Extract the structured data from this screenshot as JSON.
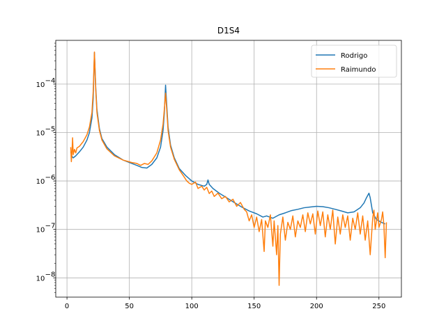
{
  "chart_data": {
    "type": "line",
    "title": "D1S4",
    "xlabel": "",
    "ylabel": "",
    "xlim": [
      -9,
      268
    ],
    "ylim": [
      4e-09,
      0.0008
    ],
    "y_scale": "log",
    "grid": true,
    "legend_position": "top-right",
    "x_ticks": [
      0,
      50,
      100,
      150,
      200,
      250
    ],
    "x_tick_labels": [
      "0",
      "50",
      "100",
      "150",
      "200",
      "250"
    ],
    "y_ticks": [
      1e-08,
      1e-07,
      1e-06,
      1e-05,
      0.0001
    ],
    "y_tick_labels": [
      "10",
      "10",
      "10",
      "10",
      "10"
    ],
    "y_tick_exponents": [
      "−8",
      "−7",
      "−6",
      "−5",
      "−4"
    ],
    "series": [
      {
        "name": "Rodrigo",
        "color": "#1f77b4",
        "points": [
          [
            3,
            4e-06
          ],
          [
            4,
            3.2e-06
          ],
          [
            5,
            3e-06
          ],
          [
            7,
            3.3e-06
          ],
          [
            10,
            4e-06
          ],
          [
            13,
            5e-06
          ],
          [
            16,
            7e-06
          ],
          [
            18,
            1e-05
          ],
          [
            20,
            2e-05
          ],
          [
            21,
            5e-05
          ],
          [
            22,
            0.00045
          ],
          [
            23,
            9e-05
          ],
          [
            24,
            3e-05
          ],
          [
            26,
            1.2e-05
          ],
          [
            28,
            7.5e-06
          ],
          [
            32,
            5e-06
          ],
          [
            38,
            3.5e-06
          ],
          [
            45,
            2.7e-06
          ],
          [
            52,
            2.3e-06
          ],
          [
            56,
            2.1e-06
          ],
          [
            60,
            1.9e-06
          ],
          [
            64,
            1.85e-06
          ],
          [
            68,
            2.2e-06
          ],
          [
            72,
            3e-06
          ],
          [
            75,
            5e-06
          ],
          [
            77,
            1.1e-05
          ],
          [
            78,
            2.5e-05
          ],
          [
            79,
            9.5e-05
          ],
          [
            80,
            3.5e-05
          ],
          [
            81,
            1.3e-05
          ],
          [
            83,
            5.5e-06
          ],
          [
            86,
            3e-06
          ],
          [
            90,
            1.8e-06
          ],
          [
            95,
            1.3e-06
          ],
          [
            100,
            1e-06
          ],
          [
            105,
            8.5e-07
          ],
          [
            110,
            7.8e-07
          ],
          [
            112,
            8.5e-07
          ],
          [
            113,
            1.05e-06
          ],
          [
            114,
            8.5e-07
          ],
          [
            117,
            7e-07
          ],
          [
            122,
            5.6e-07
          ],
          [
            128,
            4.5e-07
          ],
          [
            134,
            3.6e-07
          ],
          [
            140,
            2.9e-07
          ],
          [
            146,
            2.4e-07
          ],
          [
            152,
            2.1e-07
          ],
          [
            157,
            1.8e-07
          ],
          [
            160,
            1.9e-07
          ],
          [
            165,
            1.7e-07
          ],
          [
            170,
            2e-07
          ],
          [
            175,
            2.2e-07
          ],
          [
            180,
            2.45e-07
          ],
          [
            185,
            2.6e-07
          ],
          [
            190,
            2.8e-07
          ],
          [
            195,
            2.9e-07
          ],
          [
            200,
            3e-07
          ],
          [
            205,
            2.95e-07
          ],
          [
            210,
            2.8e-07
          ],
          [
            215,
            2.6e-07
          ],
          [
            220,
            2.4e-07
          ],
          [
            225,
            2.2e-07
          ],
          [
            230,
            2.3e-07
          ],
          [
            235,
            2.8e-07
          ],
          [
            238,
            3.5e-07
          ],
          [
            240,
            4.5e-07
          ],
          [
            242,
            5.6e-07
          ],
          [
            243,
            4.5e-07
          ],
          [
            245,
            2.2e-07
          ],
          [
            248,
            1.6e-07
          ],
          [
            252,
            1.4e-07
          ],
          [
            255,
            1.3e-07
          ]
        ]
      },
      {
        "name": "Raimundo",
        "color": "#ff7f0e",
        "points": [
          [
            3,
            5e-06
          ],
          [
            3.5,
            2.5e-06
          ],
          [
            4,
            4e-06
          ],
          [
            4.5,
            7.8e-06
          ],
          [
            5,
            3.5e-06
          ],
          [
            6,
            4.5e-06
          ],
          [
            7,
            3.8e-06
          ],
          [
            8,
            4.8e-06
          ],
          [
            10,
            5.2e-06
          ],
          [
            13,
            6.5e-06
          ],
          [
            16,
            9e-06
          ],
          [
            18,
            1.3e-05
          ],
          [
            20,
            2.6e-05
          ],
          [
            21,
            7e-05
          ],
          [
            22,
            0.00046
          ],
          [
            23,
            8e-05
          ],
          [
            24,
            2.6e-05
          ],
          [
            26,
            1.1e-05
          ],
          [
            28,
            7e-06
          ],
          [
            32,
            4.6e-06
          ],
          [
            38,
            3.3e-06
          ],
          [
            45,
            2.7e-06
          ],
          [
            52,
            2.4e-06
          ],
          [
            56,
            2.3e-06
          ],
          [
            59,
            2.1e-06
          ],
          [
            62,
            2.3e-06
          ],
          [
            65,
            2.2e-06
          ],
          [
            68,
            2.6e-06
          ],
          [
            72,
            3.8e-06
          ],
          [
            75,
            7e-06
          ],
          [
            77,
            1.5e-05
          ],
          [
            78,
            3e-05
          ],
          [
            79,
            6.5e-05
          ],
          [
            80,
            2.8e-05
          ],
          [
            81,
            1.1e-05
          ],
          [
            83,
            5e-06
          ],
          [
            86,
            2.8e-06
          ],
          [
            90,
            1.7e-06
          ],
          [
            94,
            1.2e-06
          ],
          [
            96,
            1e-06
          ],
          [
            98,
            9e-07
          ],
          [
            100,
            8.5e-07
          ],
          [
            103,
            9.5e-07
          ],
          [
            105,
            7e-07
          ],
          [
            108,
            7.8e-07
          ],
          [
            110,
            6.5e-07
          ],
          [
            112,
            7.4e-07
          ],
          [
            114,
            5.5e-07
          ],
          [
            116,
            6.2e-07
          ],
          [
            118,
            4.8e-07
          ],
          [
            121,
            5.6e-07
          ],
          [
            124,
            4.3e-07
          ],
          [
            127,
            4.8e-07
          ],
          [
            130,
            3.7e-07
          ],
          [
            133,
            4.2e-07
          ],
          [
            136,
            3e-07
          ],
          [
            139,
            3.6e-07
          ],
          [
            142,
            2.6e-07
          ],
          [
            144,
            2.3e-07
          ],
          [
            146,
            1.5e-07
          ],
          [
            148,
            2e-07
          ],
          [
            150,
            1.1e-07
          ],
          [
            152,
            1.8e-07
          ],
          [
            154,
            9e-08
          ],
          [
            156,
            1.6e-07
          ],
          [
            158,
            3.5e-08
          ],
          [
            159,
            1.5e-07
          ],
          [
            161,
            1.1e-07
          ],
          [
            163,
            2e-07
          ],
          [
            165,
            4.5e-08
          ],
          [
            166,
            1.5e-07
          ],
          [
            168,
            3e-08
          ],
          [
            169,
            1.2e-07
          ],
          [
            170,
            7e-09
          ],
          [
            171,
            8e-08
          ],
          [
            173,
            1.8e-07
          ],
          [
            175,
            6e-08
          ],
          [
            177,
            1.4e-07
          ],
          [
            179,
            1e-07
          ],
          [
            181,
            1.9e-07
          ],
          [
            183,
            7e-08
          ],
          [
            185,
            1.5e-07
          ],
          [
            187,
            1.1e-07
          ],
          [
            189,
            2e-07
          ],
          [
            191,
            9e-08
          ],
          [
            193,
            2.2e-07
          ],
          [
            195,
            1.3e-07
          ],
          [
            197,
            2.1e-07
          ],
          [
            199,
            8e-08
          ],
          [
            201,
            2.4e-07
          ],
          [
            203,
            1.2e-07
          ],
          [
            205,
            2.3e-07
          ],
          [
            207,
            7e-08
          ],
          [
            209,
            2e-07
          ],
          [
            211,
            1e-07
          ],
          [
            213,
            2.5e-07
          ],
          [
            215,
            5e-08
          ],
          [
            217,
            1.8e-07
          ],
          [
            219,
            8e-08
          ],
          [
            221,
            2e-07
          ],
          [
            223,
            1.1e-07
          ],
          [
            225,
            1.9e-07
          ],
          [
            227,
            6e-08
          ],
          [
            229,
            1.7e-07
          ],
          [
            231,
            1e-07
          ],
          [
            233,
            2.2e-07
          ],
          [
            235,
            8e-08
          ],
          [
            237,
            1.9e-07
          ],
          [
            239,
            6e-08
          ],
          [
            241,
            1.5e-07
          ],
          [
            243,
            3e-08
          ],
          [
            245,
            1.7e-07
          ],
          [
            246,
            2.5e-07
          ],
          [
            247,
            1e-07
          ],
          [
            249,
            2.2e-07
          ],
          [
            250,
            1.1e-07
          ],
          [
            252,
            1.6e-07
          ],
          [
            253,
            2.3e-07
          ],
          [
            254,
            1.2e-07
          ],
          [
            255,
            2.6e-08
          ],
          [
            256,
            1.4e-07
          ]
        ]
      }
    ]
  }
}
